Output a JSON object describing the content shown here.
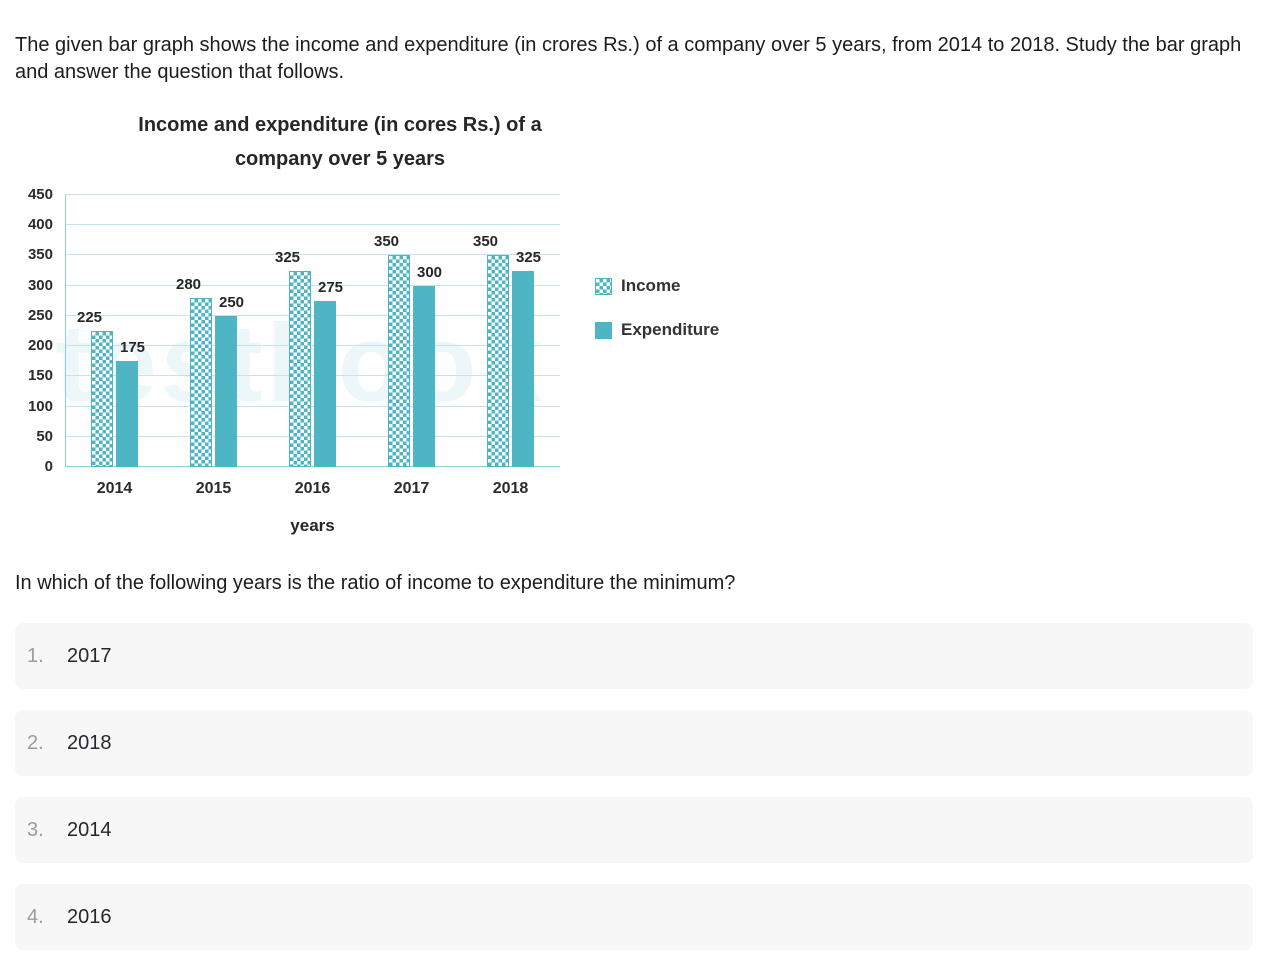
{
  "intro": "The given bar graph shows the income and expenditure (in crores Rs.) of a company over 5 years, from 2014 to 2018. Study the bar graph and answer the question that follows.",
  "watermark": "testbook",
  "chart_data": {
    "type": "bar",
    "title": "Income and expenditure (in cores Rs.) of a company over 5 years",
    "title_line1": "Income and expenditure (in cores Rs.) of a",
    "title_line2": "company over 5 years",
    "categories": [
      "2014",
      "2015",
      "2016",
      "2017",
      "2018"
    ],
    "series": [
      {
        "name": "Income",
        "style": "checker",
        "values": [
          225,
          280,
          325,
          350,
          350
        ]
      },
      {
        "name": "Expenditure",
        "style": "solid",
        "values": [
          175,
          250,
          275,
          300,
          325
        ]
      }
    ],
    "xlabel": "years",
    "ylabel": "",
    "ylim": [
      0,
      450
    ],
    "yticks": [
      450,
      400,
      350,
      300,
      250,
      200,
      150,
      100,
      50,
      0
    ],
    "grid": true,
    "legend_position": "right",
    "accent_color": "#4db5c4",
    "grid_color": "#c3e4e9"
  },
  "question": "In which of the following years is the ratio of income to expenditure the minimum?",
  "options": [
    {
      "num": "1.",
      "label": "2017"
    },
    {
      "num": "2.",
      "label": "2018"
    },
    {
      "num": "3.",
      "label": "2014"
    },
    {
      "num": "4.",
      "label": "2016"
    }
  ]
}
